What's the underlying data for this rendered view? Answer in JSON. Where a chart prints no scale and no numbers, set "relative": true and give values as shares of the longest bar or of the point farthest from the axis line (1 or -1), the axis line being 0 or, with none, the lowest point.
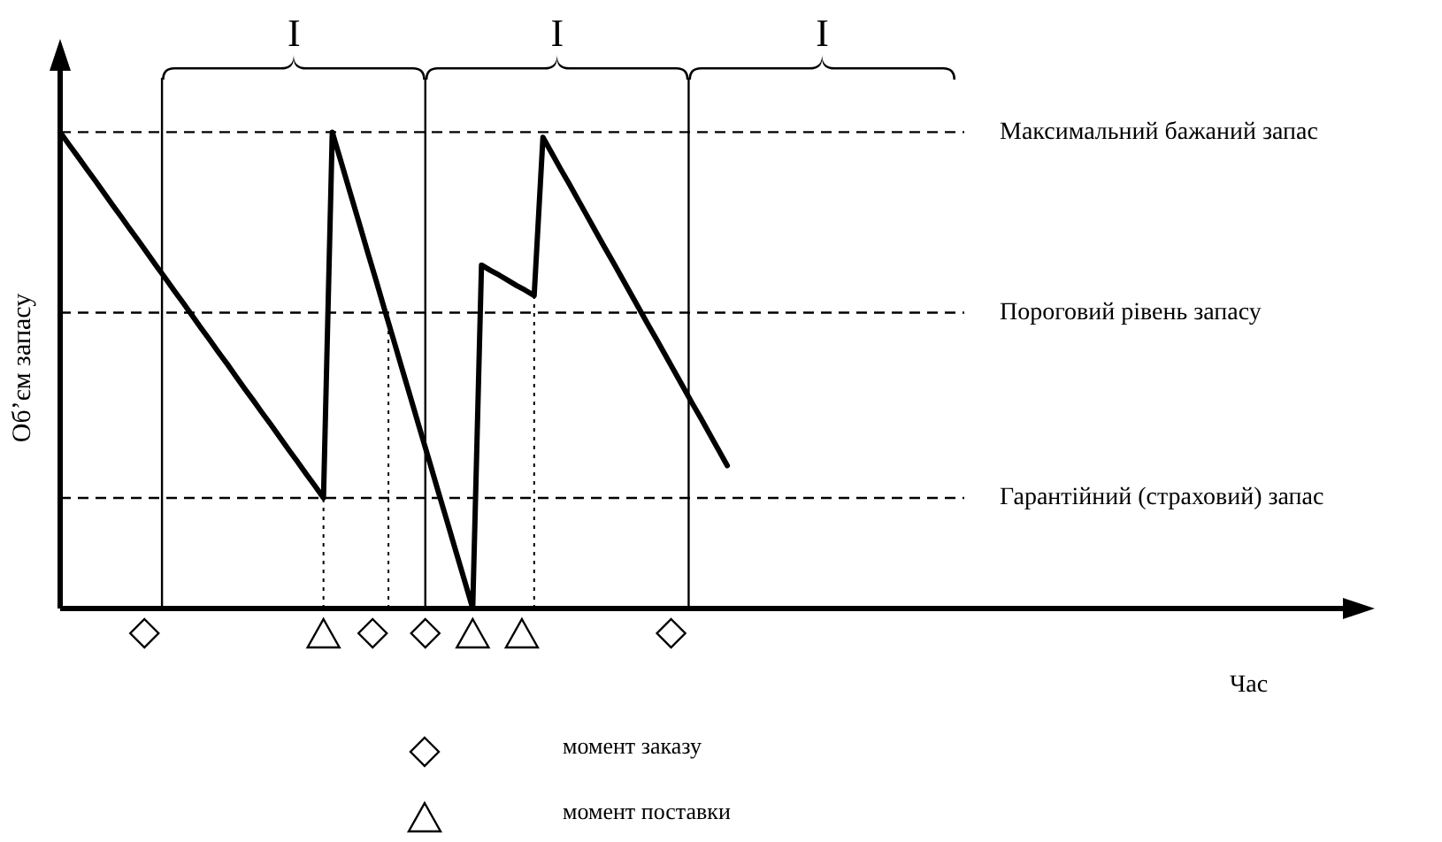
{
  "chart_data": {
    "type": "line",
    "relative": true,
    "ylabel": "Об’єм запасу",
    "categories": [
      null,
      null,
      null,
      null,
      null,
      null,
      null,
      null,
      null,
      null,
      null,
      null,
      null,
      null,
      null,
      null,
      null,
      null,
      null,
      null,
      null,
      null,
      null,
      null,
      null,
      null,
      null,
      null,
      null,
      null,
      null,
      null,
      null,
      null,
      null,
      null,
      null,
      null,
      null,
      null,
      null,
      null,
      null,
      null,
      null,
      null,
      null,
      null,
      null,
      null,
      null,
      null,
      null,
      null,
      null,
      null,
      null,
      null,
      null,
      null,
      null,
      null,
      null,
      null,
      null,
      null,
      null,
      null,
      null,
      null,
      null,
      null,
      null,
      null,
      null,
      null,
      null,
      null,
      null,
      null,
      null,
      null,
      null,
      null,
      null,
      null,
      null,
      null,
      null,
      null,
      null,
      null,
      null,
      null,
      null,
      null,
      null,
      null,
      null,
      null,
      null,
      null,
      null,
      null
    ],
    "series": [
      {
        "color": "#000000",
        "values": [
          1,
          0.974,
          0.949,
          0.923,
          0.898,
          0.872,
          0.846,
          0.821,
          0.795,
          0.77,
          0.744,
          0.718,
          0.693,
          0.667,
          0.642,
          0.616,
          0.59,
          0.565,
          0.539,
          0.514,
          0.488,
          0.462,
          0.437,
          0.411,
          0.386,
          0.36,
          0.334,
          0.309,
          0.283,
          0.258,
          0.232,
          1,
          0.938,
          0.875,
          0.813,
          0.75,
          0.688,
          0.625,
          0.563,
          0.5,
          0.438,
          0.375,
          0.313,
          0.25,
          0.188,
          0.125,
          0.063,
          0,
          0.721,
          0.71,
          0.7,
          0.689,
          0.678,
          0.668,
          0.657,
          0.989,
          0.956,
          0.923,
          0.891,
          0.858,
          0.825,
          0.792,
          0.759,
          0.727,
          0.694,
          0.661,
          0.628,
          0.595,
          0.563,
          0.53,
          0.497,
          0.464,
          0.431,
          0.399,
          0.366,
          0.333,
          0.3,
          null,
          null,
          null,
          null,
          null,
          null,
          null,
          null,
          null,
          null,
          null,
          null,
          null,
          null,
          null,
          null,
          null,
          null,
          null,
          null,
          null,
          null,
          null,
          null,
          null,
          null,
          null
        ]
      }
    ],
    "ref_lines": [
      {
        "axis": "y",
        "value": 1,
        "label": "Максимальний бажаний запас",
        "line_style": "dashed"
      },
      {
        "axis": "y",
        "value": 0.621,
        "label": "Пороговий рівень запасу",
        "line_style": "dashed"
      },
      {
        "axis": "y",
        "value": 0.232,
        "label": "Гарантійний (страховий) запас",
        "line_style": "dashed"
      }
    ],
    "annotations": [
      "I",
      "I",
      "I",
      "Час",
      "момент заказу",
      "момент поставки"
    ]
  }
}
